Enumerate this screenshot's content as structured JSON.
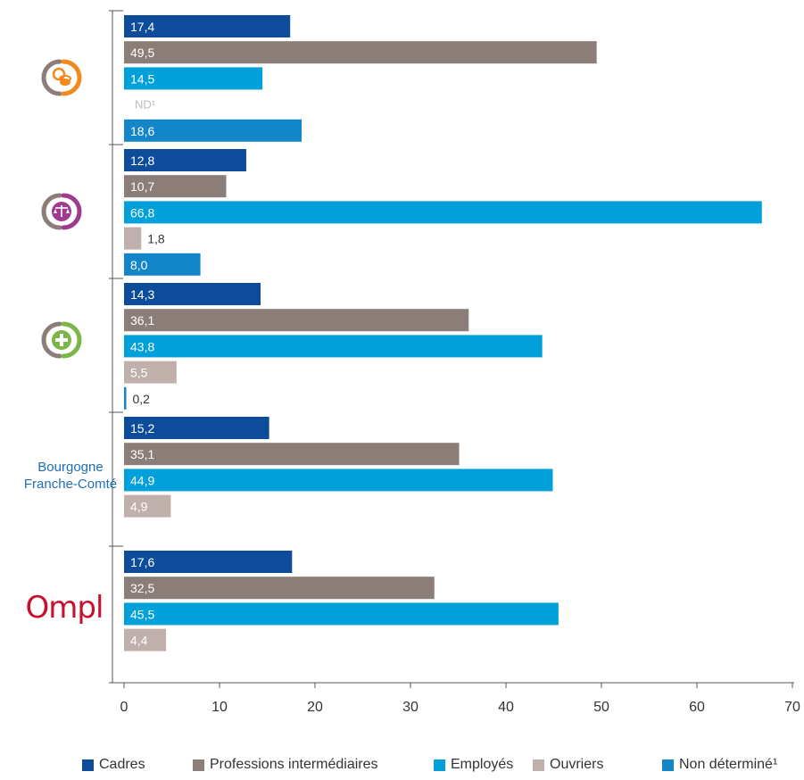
{
  "colors": {
    "cadres": "#0d4c9b",
    "professions_intermediaires": "#8b7d77",
    "employes": "#00a0db",
    "ouvriers": "#bfb0ab",
    "non_determine": "#1386c9",
    "axis": "#555555",
    "label_blue": "#1f6fb5",
    "ompl": "#c8102e"
  },
  "groups": [
    {
      "label": "",
      "icon": "gear-coin-icon"
    },
    {
      "label": "",
      "icon": "justice-scales-icon"
    },
    {
      "label": "",
      "icon": "health-cross-icon"
    },
    {
      "label": "Bourgogne Franche-Comté",
      "label_lines": [
        "Bourgogne",
        "Franche-Comté"
      ],
      "icon": ""
    },
    {
      "label": "",
      "icon": "ompl-logo"
    }
  ],
  "logo_text": "Ompl",
  "legend": [
    {
      "key": "cadres",
      "label": "Cadres"
    },
    {
      "key": "professions_intermediaires",
      "label": "Professions intermédiaires"
    },
    {
      "key": "employes",
      "label": "Employés"
    },
    {
      "key": "ouvriers",
      "label": "Ouvriers"
    },
    {
      "key": "non_determine",
      "label": "Non déterminé¹"
    }
  ],
  "chart_data": {
    "type": "bar",
    "orientation": "horizontal",
    "categories": [
      "group-1",
      "group-2",
      "group-3",
      "Bourgogne Franche-Comté",
      "Ompl"
    ],
    "series": [
      {
        "name": "Cadres",
        "key": "cadres",
        "values": [
          17.4,
          12.8,
          14.3,
          15.2,
          17.6
        ],
        "labels": [
          "17,4",
          "12,8",
          "14,3",
          "15,2",
          "17,6"
        ]
      },
      {
        "name": "Professions intermédiaires",
        "key": "professions_intermediaires",
        "values": [
          49.5,
          10.7,
          36.1,
          35.1,
          32.5
        ],
        "labels": [
          "49,5",
          "10,7",
          "36,1",
          "35,1",
          "32,5"
        ]
      },
      {
        "name": "Employés",
        "key": "employes",
        "values": [
          14.5,
          66.8,
          43.8,
          44.9,
          45.5
        ],
        "labels": [
          "14,5",
          "66,8",
          "43,8",
          "44,9",
          "45,5"
        ]
      },
      {
        "name": "Ouvriers",
        "key": "ouvriers",
        "values": [
          null,
          1.8,
          5.5,
          4.9,
          4.4
        ],
        "labels": [
          "ND¹",
          "1,8",
          "5,5",
          "4,9",
          "4,4"
        ]
      },
      {
        "name": "Non déterminé¹",
        "key": "non_determine",
        "values": [
          18.6,
          8.0,
          0.2,
          null,
          null
        ],
        "labels": [
          "18,6",
          "8,0",
          "0,2",
          "",
          ""
        ]
      }
    ],
    "xlim": [
      0,
      70
    ],
    "xticks": [
      0,
      10,
      20,
      30,
      40,
      50,
      60,
      70
    ],
    "xtick_labels": [
      "0",
      "10",
      "20",
      "30",
      "40",
      "50",
      "60",
      "70"
    ],
    "title": "",
    "xlabel": "",
    "ylabel": "",
    "grid": false,
    "legend_position": "bottom"
  }
}
